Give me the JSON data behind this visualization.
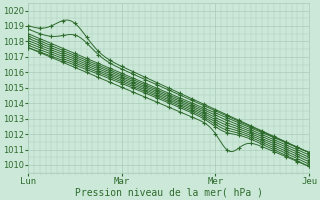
{
  "bg_color": "#cce8d8",
  "grid_color": "#a8ccb8",
  "line_color": "#2d6b2d",
  "marker_color": "#2d6b2d",
  "xlabel": "Pression niveau de la mer( hPa )",
  "xlabel_color": "#2d6b2d",
  "tick_color": "#2d6b2d",
  "ylim": [
    1009.5,
    1020.5
  ],
  "yticks": [
    1010,
    1011,
    1012,
    1013,
    1014,
    1015,
    1016,
    1017,
    1018,
    1019,
    1020
  ],
  "day_labels": [
    "Lun",
    "Mar",
    "Mer",
    "Jeu"
  ],
  "day_positions": [
    0,
    48,
    96,
    144
  ],
  "num_steps": 145
}
